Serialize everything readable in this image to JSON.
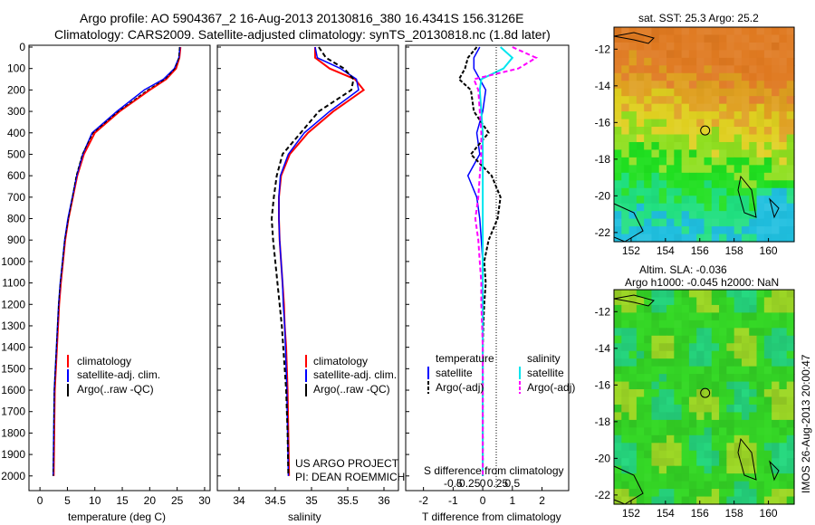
{
  "header": {
    "line1": "Argo profile: AO 5904367_2 16-Aug-2013 20130816_380 16.4341S 156.3126E",
    "line2": "Climatology: CARS2009. Satellite-adjusted climatology: synTS_20130818.nc (1.8d later)"
  },
  "colors": {
    "climatology": "#ff0000",
    "satellite": "#0000ff",
    "argo": "#000000",
    "t_satellite": "#0000ff",
    "s_satellite": "#00e5ee",
    "s_argo": "#ff00ff",
    "mapframe": "#000000"
  },
  "depth_axis": {
    "ticks": [
      "0",
      "100",
      "200",
      "300",
      "400",
      "500",
      "600",
      "700",
      "800",
      "900",
      "1000",
      "1100",
      "1200",
      "1300",
      "1400",
      "1500",
      "1600",
      "1700",
      "1800",
      "1900",
      "2000"
    ],
    "min": 0,
    "max": 2060
  },
  "panel_temp": {
    "xlabel": "temperature (deg C)",
    "xticks": [
      "0",
      "5",
      "10",
      "15",
      "20",
      "25",
      "30"
    ],
    "legend": [
      "climatology",
      "satellite-adj. clim.",
      "Argo(..raw -QC)"
    ]
  },
  "panel_sal": {
    "xlabel": "salinity",
    "xticks": [
      "34",
      "34.5",
      "35",
      "35.5",
      "36"
    ],
    "legend": [
      "climatology",
      "satellite-adj. clim.",
      "Argo(..raw -QC)"
    ],
    "project1": "US ARGO PROJECT",
    "project2": "PI: DEAN ROEMMICH"
  },
  "panel_diff": {
    "xlabel": "T difference from climatology",
    "xlabel_top": "S difference from climatology",
    "xticks_t": [
      "-2",
      "-1",
      "0",
      "1",
      "2"
    ],
    "xticks_s": [
      "-0.5",
      "-0.25",
      "0",
      "0.25",
      "0.5"
    ],
    "leg_head_t": "temperature",
    "leg_head_s": "salinity",
    "leg_t": [
      "satellite",
      "Argo(-adj)"
    ],
    "leg_s": [
      "satellite",
      "Argo(-adj)"
    ]
  },
  "map_sst": {
    "title": "sat. SST: 25.3 Argo: 25.2",
    "yticks": [
      "-12",
      "-14",
      "-16",
      "-18",
      "-20",
      "-22"
    ],
    "xticks": [
      "152",
      "154",
      "156",
      "158",
      "160"
    ]
  },
  "map_sla": {
    "title1": "Altim. SLA: -0.036",
    "title2": "Argo h1000: -0.045 h2000: NaN",
    "yticks": [
      "-12",
      "-14",
      "-16",
      "-18",
      "-20",
      "-22"
    ],
    "xticks": [
      "152",
      "154",
      "156",
      "158",
      "160"
    ]
  },
  "side_text": "IMOS 26-Aug-2013 20:00:47",
  "chart_data": [
    {
      "type": "line",
      "title": "",
      "xlabel": "temperature (deg C)",
      "ylabel": "",
      "xlim": [
        -2,
        31
      ],
      "ylim": [
        2060,
        0
      ],
      "series": [
        {
          "name": "climatology",
          "x": [
            25.6,
            25.4,
            24.8,
            23.0,
            20.0,
            14.5,
            10.0,
            8.0,
            6.8,
            6.0,
            5.2,
            4.6,
            4.2,
            3.8,
            3.5,
            3.3,
            3.1,
            2.9,
            2.7,
            2.6,
            2.5
          ],
          "y": [
            0,
            50,
            100,
            150,
            200,
            300,
            400,
            500,
            600,
            700,
            800,
            900,
            1000,
            1100,
            1200,
            1300,
            1400,
            1500,
            1600,
            1800,
            2000
          ]
        },
        {
          "name": "satellite-adj. clim.",
          "x": [
            25.5,
            25.3,
            24.5,
            22.5,
            19.0,
            14.0,
            9.5,
            7.8,
            6.7,
            5.9,
            5.1,
            4.5,
            4.1,
            3.7,
            3.4,
            3.2,
            3.0,
            2.8,
            2.6,
            2.5,
            2.4
          ],
          "y": [
            0,
            50,
            100,
            150,
            200,
            300,
            400,
            500,
            600,
            700,
            800,
            900,
            1000,
            1100,
            1200,
            1300,
            1400,
            1500,
            1600,
            1800,
            2000
          ]
        },
        {
          "name": "Argo(..raw -QC)",
          "x": [
            25.4,
            25.3,
            24.6,
            22.8,
            19.6,
            14.3,
            9.7,
            7.7,
            6.6,
            5.9,
            5.2,
            4.5,
            4.1,
            3.7,
            3.4,
            3.2,
            3.0,
            2.8,
            2.6,
            2.5,
            2.4
          ],
          "y": [
            0,
            50,
            100,
            150,
            200,
            300,
            400,
            500,
            600,
            700,
            800,
            900,
            1000,
            1100,
            1200,
            1300,
            1400,
            1500,
            1600,
            1800,
            2000
          ]
        }
      ]
    },
    {
      "type": "line",
      "title": "",
      "xlabel": "salinity",
      "ylabel": "",
      "xlim": [
        33.7,
        36.2
      ],
      "ylim": [
        2060,
        0
      ],
      "series": [
        {
          "name": "climatology",
          "x": [
            35.05,
            35.05,
            35.25,
            35.6,
            35.72,
            35.3,
            34.95,
            34.7,
            34.58,
            34.55,
            34.55,
            34.56,
            34.58,
            34.6,
            34.62,
            34.63,
            34.65,
            34.66,
            34.67,
            34.68,
            34.69
          ],
          "y": [
            0,
            50,
            100,
            150,
            200,
            300,
            400,
            500,
            600,
            700,
            800,
            900,
            1000,
            1100,
            1200,
            1300,
            1400,
            1500,
            1600,
            1800,
            2000
          ]
        },
        {
          "name": "satellite-adj. clim.",
          "x": [
            35.05,
            35.08,
            35.4,
            35.62,
            35.65,
            35.25,
            34.9,
            34.68,
            34.57,
            34.55,
            34.55,
            34.56,
            34.58,
            34.6,
            34.61,
            34.63,
            34.64,
            34.65,
            34.66,
            34.67,
            34.68
          ],
          "y": [
            0,
            50,
            100,
            150,
            200,
            300,
            400,
            500,
            600,
            700,
            800,
            900,
            1000,
            1100,
            1200,
            1300,
            1400,
            1500,
            1600,
            1800,
            2000
          ]
        },
        {
          "name": "Argo(..raw -QC)",
          "x": [
            35.1,
            35.2,
            35.45,
            35.58,
            35.55,
            35.1,
            34.85,
            34.6,
            34.52,
            34.48,
            34.45,
            34.47,
            34.5,
            34.53,
            34.56,
            34.59,
            34.61,
            34.63,
            34.65,
            34.67,
            34.68
          ],
          "y": [
            0,
            50,
            100,
            150,
            200,
            300,
            400,
            500,
            600,
            700,
            800,
            900,
            1000,
            1100,
            1200,
            1300,
            1400,
            1500,
            1600,
            1800,
            2000
          ]
        }
      ]
    },
    {
      "type": "line",
      "title": "",
      "xlabel": "T difference from climatology",
      "ylabel": "",
      "xlim": [
        -2.6,
        2.9
      ],
      "ylim": [
        2060,
        0
      ],
      "series": [
        {
          "name": "temperature satellite",
          "x": [
            -0.1,
            -0.3,
            -0.3,
            -0.1,
            0.1,
            0.0,
            -0.2,
            -0.1,
            -0.5,
            -0.2,
            -0.1,
            -0.05,
            0.0,
            0.0,
            0.0,
            0.0,
            0.0,
            0.0,
            0.0,
            0.0,
            0.0
          ],
          "y": [
            0,
            50,
            100,
            150,
            200,
            300,
            400,
            500,
            600,
            700,
            800,
            900,
            1000,
            1100,
            1200,
            1300,
            1400,
            1500,
            1600,
            1800,
            2000
          ]
        },
        {
          "name": "temperature Argo(-adj)",
          "x": [
            -0.2,
            -0.5,
            -0.6,
            -0.8,
            -0.4,
            -0.3,
            0.2,
            -0.4,
            0.3,
            0.6,
            0.5,
            0.2,
            0.05,
            0.1,
            0.05,
            0.02,
            0.0,
            0.0,
            0.0,
            0.0,
            0.0
          ],
          "y": [
            0,
            50,
            100,
            150,
            200,
            300,
            400,
            500,
            600,
            700,
            800,
            900,
            1000,
            1100,
            1200,
            1300,
            1400,
            1500,
            1600,
            1800,
            2000
          ]
        },
        {
          "name": "salinity satellite",
          "x": [
            0.6,
            1.0,
            0.7,
            -0.05,
            -0.1,
            -0.05,
            0.0,
            0.0,
            0.0,
            0.0,
            0.0,
            0.0,
            0.0,
            0.0,
            0.0,
            0.0,
            0.0,
            0.0,
            0.0,
            0.0,
            0.0
          ],
          "y": [
            0,
            50,
            100,
            150,
            200,
            300,
            400,
            500,
            600,
            700,
            800,
            900,
            1000,
            1100,
            1200,
            1300,
            1400,
            1500,
            1600,
            1800,
            2000
          ]
        },
        {
          "name": "salinity Argo(-adj)",
          "x": [
            1.0,
            1.8,
            1.2,
            -0.3,
            -0.15,
            -0.1,
            -0.05,
            -0.05,
            -0.1,
            -0.15,
            -0.25,
            -0.15,
            -0.1,
            -0.05,
            -0.05,
            -0.02,
            0.0,
            0.0,
            0.0,
            0.0,
            0.0
          ],
          "y": [
            0,
            50,
            100,
            150,
            200,
            300,
            400,
            500,
            600,
            700,
            800,
            900,
            1000,
            1100,
            1200,
            1300,
            1400,
            1500,
            1600,
            1800,
            2000
          ]
        }
      ]
    },
    {
      "type": "heatmap",
      "title": "sat. SST: 25.3 Argo: 25.2",
      "xlim": [
        151,
        161.5
      ],
      "ylim": [
        -22.5,
        -10.8
      ],
      "marker": {
        "lon": 156.3126,
        "lat": -16.4341
      }
    },
    {
      "type": "heatmap",
      "title": "Altim. SLA: -0.036",
      "xlim": [
        151,
        161.5
      ],
      "ylim": [
        -22.5,
        -10.8
      ],
      "marker": {
        "lon": 156.3126,
        "lat": -16.4341
      }
    }
  ]
}
